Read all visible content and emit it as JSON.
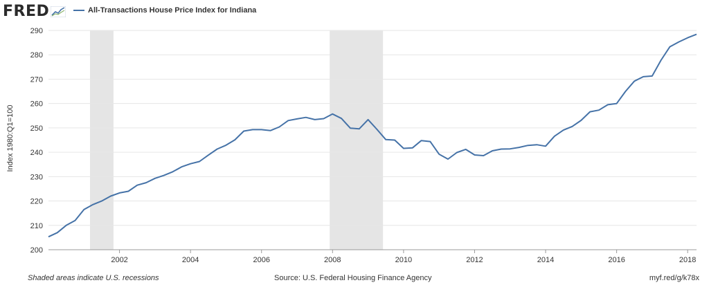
{
  "header": {
    "logo_text": "FRED",
    "legend_label": "All-Transactions House Price Index for Indiana"
  },
  "footer": {
    "recession_note": "Shaded areas indicate U.S. recessions",
    "source": "Source: U.S. Federal Housing Finance Agency",
    "short_url": "myf.red/g/k78x"
  },
  "chart_data": {
    "type": "line",
    "title": "",
    "xlabel": "",
    "ylabel": "Index 1980:Q1=100",
    "xlim": [
      2000.0,
      2018.25
    ],
    "ylim": [
      200,
      290
    ],
    "y_ticks": [
      200,
      210,
      220,
      230,
      240,
      250,
      260,
      270,
      280,
      290
    ],
    "x_ticks": [
      2002,
      2004,
      2006,
      2008,
      2010,
      2012,
      2014,
      2016,
      2018
    ],
    "grid": true,
    "line_color": "#4572a7",
    "recession_color": "#e5e5e5",
    "recessions": [
      [
        2001.17,
        2001.83
      ],
      [
        2007.92,
        2009.42
      ]
    ],
    "series": [
      {
        "name": "All-Transactions House Price Index for Indiana",
        "x": [
          2000.0,
          2000.25,
          2000.5,
          2000.75,
          2001.0,
          2001.25,
          2001.5,
          2001.75,
          2002.0,
          2002.25,
          2002.5,
          2002.75,
          2003.0,
          2003.25,
          2003.5,
          2003.75,
          2004.0,
          2004.25,
          2004.5,
          2004.75,
          2005.0,
          2005.25,
          2005.5,
          2005.75,
          2006.0,
          2006.25,
          2006.5,
          2006.75,
          2007.0,
          2007.25,
          2007.5,
          2007.75,
          2008.0,
          2008.25,
          2008.5,
          2008.75,
          2009.0,
          2009.25,
          2009.5,
          2009.75,
          2010.0,
          2010.25,
          2010.5,
          2010.75,
          2011.0,
          2011.25,
          2011.5,
          2011.75,
          2012.0,
          2012.25,
          2012.5,
          2012.75,
          2013.0,
          2013.25,
          2013.5,
          2013.75,
          2014.0,
          2014.25,
          2014.5,
          2014.75,
          2015.0,
          2015.25,
          2015.5,
          2015.75,
          2016.0,
          2016.25,
          2016.5,
          2016.75,
          2017.0,
          2017.25,
          2017.5,
          2017.75,
          2018.0,
          2018.25
        ],
        "values": [
          205.3,
          207.0,
          210.0,
          212.0,
          216.5,
          218.5,
          220.0,
          222.0,
          223.3,
          224.0,
          226.5,
          227.5,
          229.3,
          230.5,
          232.0,
          234.0,
          235.3,
          236.2,
          238.8,
          241.3,
          242.9,
          245.1,
          248.7,
          249.3,
          249.3,
          248.9,
          250.4,
          253.0,
          253.7,
          254.3,
          253.4,
          253.8,
          255.7,
          253.9,
          249.9,
          249.6,
          253.4,
          249.4,
          245.2,
          245.0,
          241.6,
          241.8,
          244.8,
          244.4,
          239.2,
          237.2,
          239.9,
          241.2,
          238.9,
          238.6,
          240.6,
          241.3,
          241.4,
          242.0,
          242.8,
          243.1,
          242.5,
          246.6,
          249.1,
          250.6,
          253.1,
          256.6,
          257.3,
          259.5,
          260.0,
          265.0,
          269.2,
          271.0,
          271.3,
          277.8,
          283.3,
          285.3,
          287.0,
          288.4
        ]
      }
    ]
  }
}
